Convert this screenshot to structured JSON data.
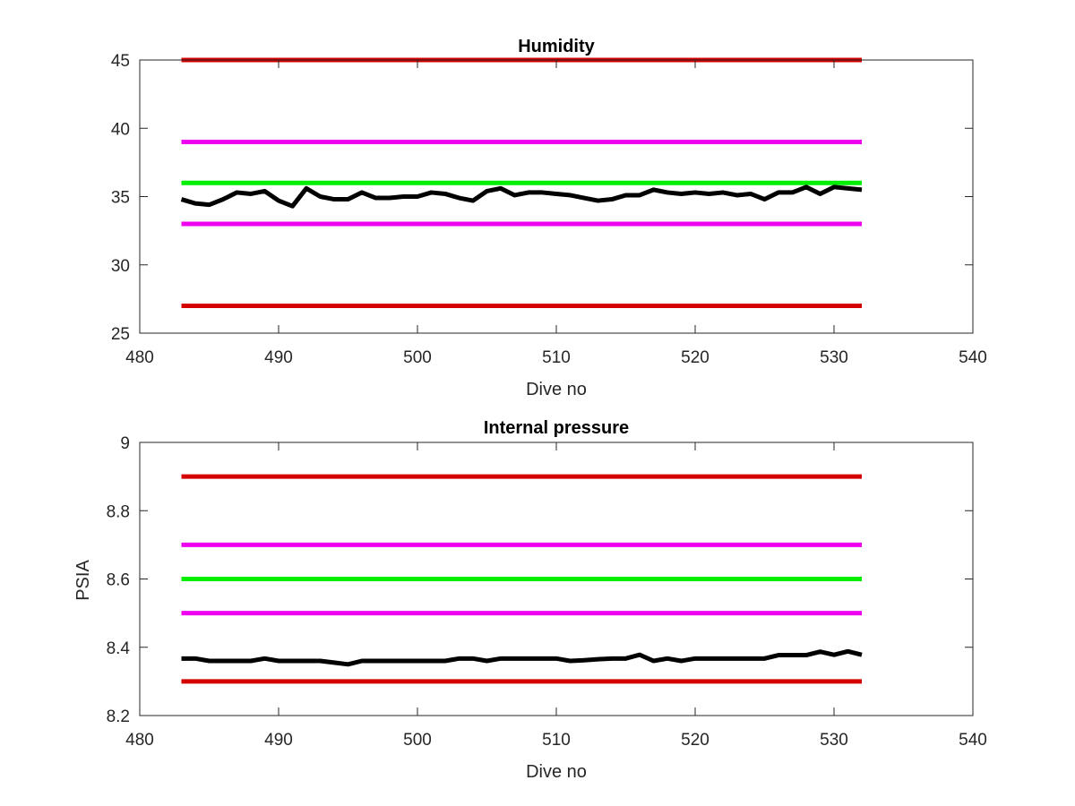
{
  "figure": {
    "background": "#ffffff"
  },
  "chart_data": [
    {
      "type": "line",
      "title": "Humidity",
      "xlabel": "Dive no",
      "ylabel": "",
      "xlim": [
        480,
        540
      ],
      "ylim": [
        25,
        45
      ],
      "xticks": [
        "480",
        "490",
        "500",
        "510",
        "520",
        "530",
        "540"
      ],
      "yticks": [
        "25",
        "30",
        "35",
        "40",
        "45"
      ],
      "grid": false,
      "series": [
        {
          "color": "#d40000",
          "x": [
            483,
            532
          ],
          "y": [
            45,
            45
          ]
        },
        {
          "color": "#ee00ee",
          "x": [
            483,
            532
          ],
          "y": [
            39,
            39
          ]
        },
        {
          "color": "#00ee00",
          "x": [
            483,
            532
          ],
          "y": [
            36,
            36
          ]
        },
        {
          "color": "#ee00ee",
          "x": [
            483,
            532
          ],
          "y": [
            33,
            33
          ]
        },
        {
          "color": "#d40000",
          "x": [
            483,
            532
          ],
          "y": [
            27,
            27
          ]
        },
        {
          "color": "#000000",
          "x": [
            483,
            484,
            485,
            486,
            487,
            488,
            489,
            490,
            491,
            492,
            493,
            494,
            495,
            496,
            497,
            498,
            499,
            500,
            501,
            502,
            503,
            504,
            505,
            506,
            507,
            508,
            509,
            510,
            511,
            512,
            513,
            514,
            515,
            516,
            517,
            518,
            519,
            520,
            521,
            522,
            523,
            524,
            525,
            526,
            527,
            528,
            529,
            530,
            531,
            532
          ],
          "y": [
            34.8,
            34.5,
            34.4,
            34.8,
            35.3,
            35.2,
            35.4,
            34.7,
            34.3,
            35.6,
            35.0,
            34.8,
            34.8,
            35.3,
            34.9,
            34.9,
            35.0,
            35.0,
            35.3,
            35.2,
            34.9,
            34.7,
            35.4,
            35.6,
            35.1,
            35.3,
            35.3,
            35.2,
            35.1,
            34.9,
            34.7,
            34.8,
            35.1,
            35.1,
            35.5,
            35.3,
            35.2,
            35.3,
            35.2,
            35.3,
            35.1,
            35.2,
            34.8,
            35.3,
            35.3,
            35.7,
            35.2,
            35.7,
            35.6,
            35.5
          ]
        }
      ]
    },
    {
      "type": "line",
      "title": "Internal pressure",
      "xlabel": "Dive no",
      "ylabel": "PSIA",
      "xlim": [
        480,
        540
      ],
      "ylim": [
        8.2,
        9
      ],
      "xticks": [
        "480",
        "490",
        "500",
        "510",
        "520",
        "530",
        "540"
      ],
      "yticks": [
        "8.2",
        "8.4",
        "8.6",
        "8.8",
        "9"
      ],
      "grid": false,
      "series": [
        {
          "color": "#d40000",
          "x": [
            483,
            532
          ],
          "y": [
            8.9,
            8.9
          ]
        },
        {
          "color": "#ee00ee",
          "x": [
            483,
            532
          ],
          "y": [
            8.7,
            8.7
          ]
        },
        {
          "color": "#00ee00",
          "x": [
            483,
            532
          ],
          "y": [
            8.6,
            8.6
          ]
        },
        {
          "color": "#ee00ee",
          "x": [
            483,
            532
          ],
          "y": [
            8.5,
            8.5
          ]
        },
        {
          "color": "#d40000",
          "x": [
            483,
            532
          ],
          "y": [
            8.3,
            8.3
          ]
        },
        {
          "color": "#000000",
          "x": [
            483,
            484,
            485,
            486,
            487,
            488,
            489,
            490,
            491,
            492,
            493,
            494,
            495,
            496,
            497,
            498,
            499,
            500,
            501,
            502,
            503,
            504,
            505,
            506,
            507,
            508,
            509,
            510,
            511,
            512,
            513,
            514,
            515,
            516,
            517,
            518,
            519,
            520,
            521,
            522,
            523,
            524,
            525,
            526,
            527,
            528,
            529,
            530,
            531,
            532
          ],
          "y": [
            8.367,
            8.367,
            8.36,
            8.36,
            8.36,
            8.36,
            8.367,
            8.36,
            8.36,
            8.36,
            8.36,
            8.355,
            8.35,
            8.36,
            8.36,
            8.36,
            8.36,
            8.36,
            8.36,
            8.36,
            8.367,
            8.367,
            8.36,
            8.367,
            8.367,
            8.367,
            8.367,
            8.367,
            8.36,
            8.362,
            8.365,
            8.367,
            8.367,
            8.378,
            8.36,
            8.367,
            8.36,
            8.367,
            8.367,
            8.367,
            8.367,
            8.367,
            8.367,
            8.377,
            8.377,
            8.377,
            8.387,
            8.378,
            8.388,
            8.378
          ]
        }
      ]
    }
  ]
}
